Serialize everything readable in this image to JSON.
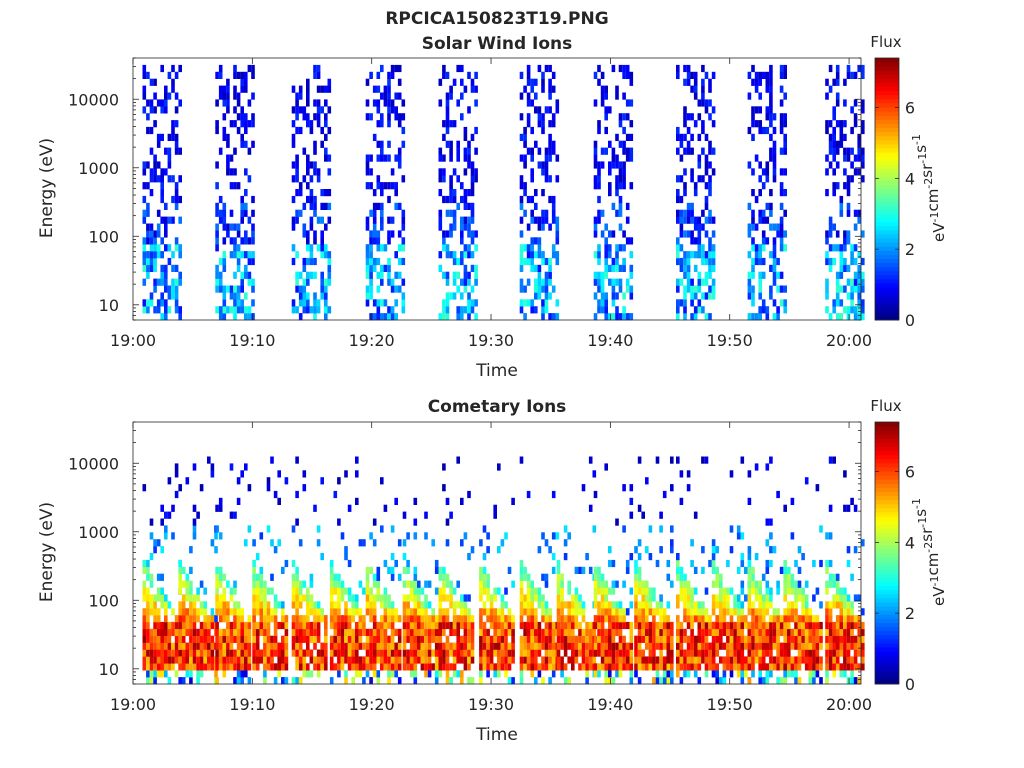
{
  "figure": {
    "title": "RPCICA150823T19.PNG"
  },
  "chart_data": [
    {
      "type": "heatmap",
      "title": "Solar Wind Ions",
      "xlabel": "Time",
      "ylabel": "Energy (eV)",
      "x_range": [
        "19:00",
        "20:01"
      ],
      "x_ticks": [
        "19:00",
        "19:10",
        "19:20",
        "19:30",
        "19:40",
        "19:50",
        "20:00"
      ],
      "y_scale": "log",
      "ylim": [
        6,
        40000
      ],
      "y_ticks": [
        "10",
        "100",
        "1000",
        "10000"
      ],
      "colorbar": {
        "label": "Flux",
        "units": "eV",
        "units_superscripts": [
          "-1",
          "-2",
          "-1",
          "-1"
        ],
        "units_parts": [
          "cm",
          "sr",
          "s"
        ],
        "range": [
          0,
          7.4
        ],
        "ticks": [
          "0",
          "2",
          "4",
          "6"
        ],
        "colormap": "jet"
      },
      "bursts_start_minutes": [
        0.8,
        6.9,
        13.3,
        19.5,
        25.6,
        32.4,
        38.6,
        45.5,
        51.5,
        58.0
      ],
      "burst_width_minutes": 3.2,
      "cells": "sparse noisy flux 6 eV - 35 keV in each burst; strongest (1-3) near 15-80 eV"
    },
    {
      "type": "heatmap",
      "title": "Cometary Ions",
      "xlabel": "Time",
      "ylabel": "Energy (eV)",
      "x_range": [
        "19:00",
        "20:01"
      ],
      "x_ticks": [
        "19:00",
        "19:10",
        "19:20",
        "19:30",
        "19:40",
        "19:50",
        "20:00"
      ],
      "y_scale": "log",
      "ylim": [
        6,
        40000
      ],
      "y_ticks": [
        "10",
        "100",
        "1000",
        "10000"
      ],
      "colorbar": {
        "label": "Flux",
        "units": "eV",
        "units_superscripts": [
          "-1",
          "-2",
          "-1",
          "-1"
        ],
        "units_parts": [
          "cm",
          "sr",
          "s"
        ],
        "range": [
          0,
          7.4
        ],
        "ticks": [
          "0",
          "2",
          "4",
          "6"
        ],
        "colormap": "jet"
      },
      "bursts_start_minutes": [
        0.8,
        3.8,
        6.9,
        10.0,
        13.3,
        16.5,
        19.5,
        22.6,
        25.6,
        29.0,
        32.4,
        35.5,
        38.6,
        42.0,
        45.5,
        48.5,
        51.5,
        54.5,
        58.0
      ],
      "burst_width_minutes": 3.0,
      "cells": "intense flux (5-7) around 15-45 eV, dispersed tail up to ~300 eV, sparse points up to 10 keV"
    }
  ]
}
